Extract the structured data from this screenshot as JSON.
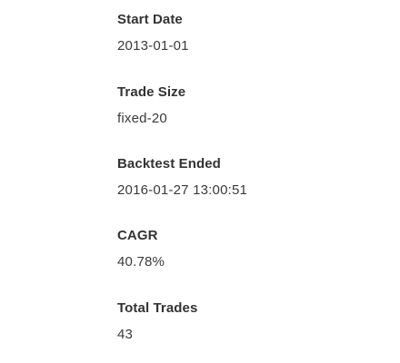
{
  "stats": {
    "start_date": {
      "label": "Start Date",
      "value": "2013-01-01"
    },
    "trade_size": {
      "label": "Trade Size",
      "value": "fixed-20"
    },
    "backtest_ended": {
      "label": "Backtest Ended",
      "value": "2016-01-27 13:00:51"
    },
    "cagr": {
      "label": "CAGR",
      "value": "40.78%"
    },
    "total_trades": {
      "label": "Total Trades",
      "value": "43"
    }
  }
}
